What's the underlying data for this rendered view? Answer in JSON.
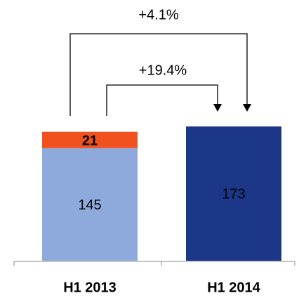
{
  "chart_data": {
    "type": "bar",
    "stacked": true,
    "categories": [
      "H1 2013",
      "H1 2014"
    ],
    "series": [
      {
        "color": "#8ea9db",
        "values": [
          145,
          null
        ]
      },
      {
        "color": "#f0511f",
        "values": [
          21,
          null
        ]
      },
      {
        "color": "#1c3787",
        "values": [
          null,
          173
        ]
      }
    ],
    "ylim": [
      0,
      200
    ],
    "annotations": [
      "+4.1%",
      "+19.4%"
    ]
  }
}
